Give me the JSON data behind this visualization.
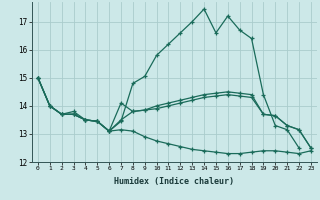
{
  "xlabel": "Humidex (Indice chaleur)",
  "background_color": "#cce8e8",
  "grid_color": "#aacccc",
  "line_color": "#1a6b5a",
  "xlim": [
    -0.5,
    23.5
  ],
  "ylim": [
    12,
    17.7
  ],
  "yticks": [
    12,
    13,
    14,
    15,
    16,
    17
  ],
  "xticks": [
    0,
    1,
    2,
    3,
    4,
    5,
    6,
    7,
    8,
    9,
    10,
    11,
    12,
    13,
    14,
    15,
    16,
    17,
    18,
    19,
    20,
    21,
    22,
    23
  ],
  "series": [
    [
      15.0,
      14.0,
      13.7,
      13.8,
      13.5,
      13.45,
      13.1,
      13.45,
      14.8,
      15.05,
      15.8,
      16.2,
      16.6,
      17.0,
      17.45,
      16.6,
      17.2,
      16.7,
      16.4,
      14.4,
      13.3,
      13.15,
      12.5,
      null
    ],
    [
      15.0,
      14.0,
      13.7,
      13.7,
      13.5,
      13.45,
      13.1,
      14.1,
      13.8,
      13.85,
      14.0,
      14.1,
      14.2,
      14.3,
      14.4,
      14.45,
      14.5,
      14.45,
      14.4,
      13.7,
      13.65,
      13.3,
      13.15,
      12.5
    ],
    [
      15.0,
      14.0,
      13.7,
      13.7,
      13.5,
      13.45,
      13.1,
      13.5,
      13.8,
      13.85,
      13.9,
      14.0,
      14.1,
      14.2,
      14.3,
      14.35,
      14.4,
      14.35,
      14.3,
      13.7,
      13.65,
      13.3,
      13.15,
      12.5
    ],
    [
      15.0,
      14.0,
      13.7,
      13.7,
      13.5,
      13.45,
      13.1,
      13.15,
      13.1,
      12.9,
      12.75,
      12.65,
      12.55,
      12.45,
      12.4,
      12.35,
      12.3,
      12.3,
      12.35,
      12.4,
      12.4,
      12.35,
      12.3,
      12.4
    ]
  ]
}
